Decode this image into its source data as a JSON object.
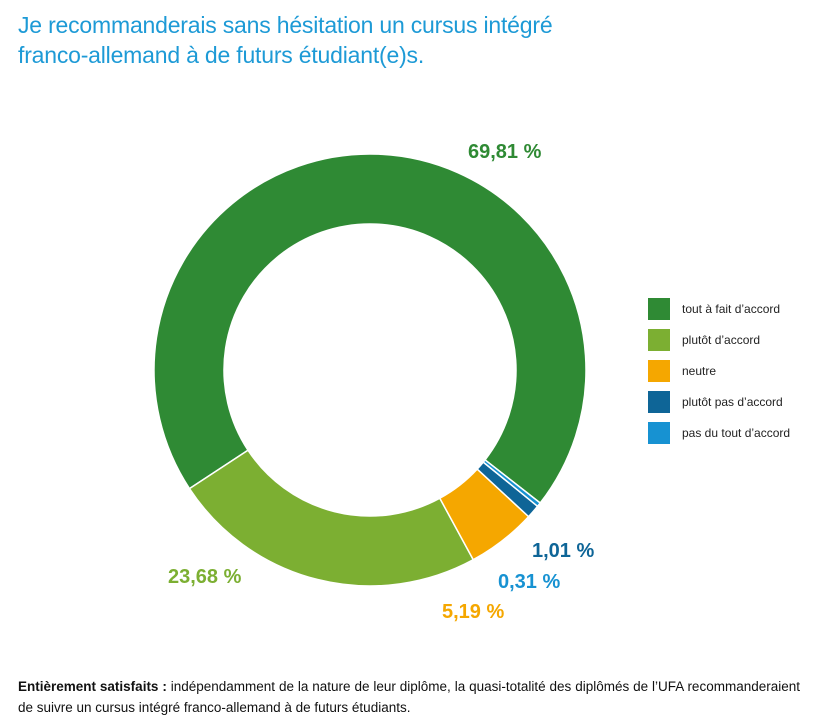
{
  "title_lines": [
    "Je recommanderais sans hésitation un cursus intégré",
    "franco-allemand à de futurs étudiant(e)s."
  ],
  "chart_data": {
    "type": "pie",
    "style": "donut",
    "title": "Je recommanderais sans hésitation un cursus intégré franco-allemand à de futurs étudiant(e)s.",
    "legend_position": "right",
    "categories": [
      "tout à fait d'accord",
      "plutôt d'accord",
      "neutre",
      "plutôt pas d'accord",
      "pas du tout d'accord"
    ],
    "legend_labels": [
      "tout à fait d’accord",
      "plutôt d’accord",
      "neutre",
      "plutôt pas d’accord",
      "pas du tout d’accord"
    ],
    "values": [
      69.81,
      23.68,
      5.19,
      1.01,
      0.31
    ],
    "value_labels": [
      "69,81 %",
      "23,68 %",
      "5,19 %",
      "1,01 %",
      "0,31 %"
    ],
    "colors": [
      "#2f8a34",
      "#7caf32",
      "#f5a700",
      "#0e6597",
      "#1792d2"
    ]
  },
  "caption": {
    "bold": "Entièrement satisfaits :",
    "text": " indépendamment de la nature de leur diplôme, la quasi-totalité des diplômés de l’UFA recommanderaient de suivre un cursus intégré franco-allemand à de futurs étudiants."
  }
}
